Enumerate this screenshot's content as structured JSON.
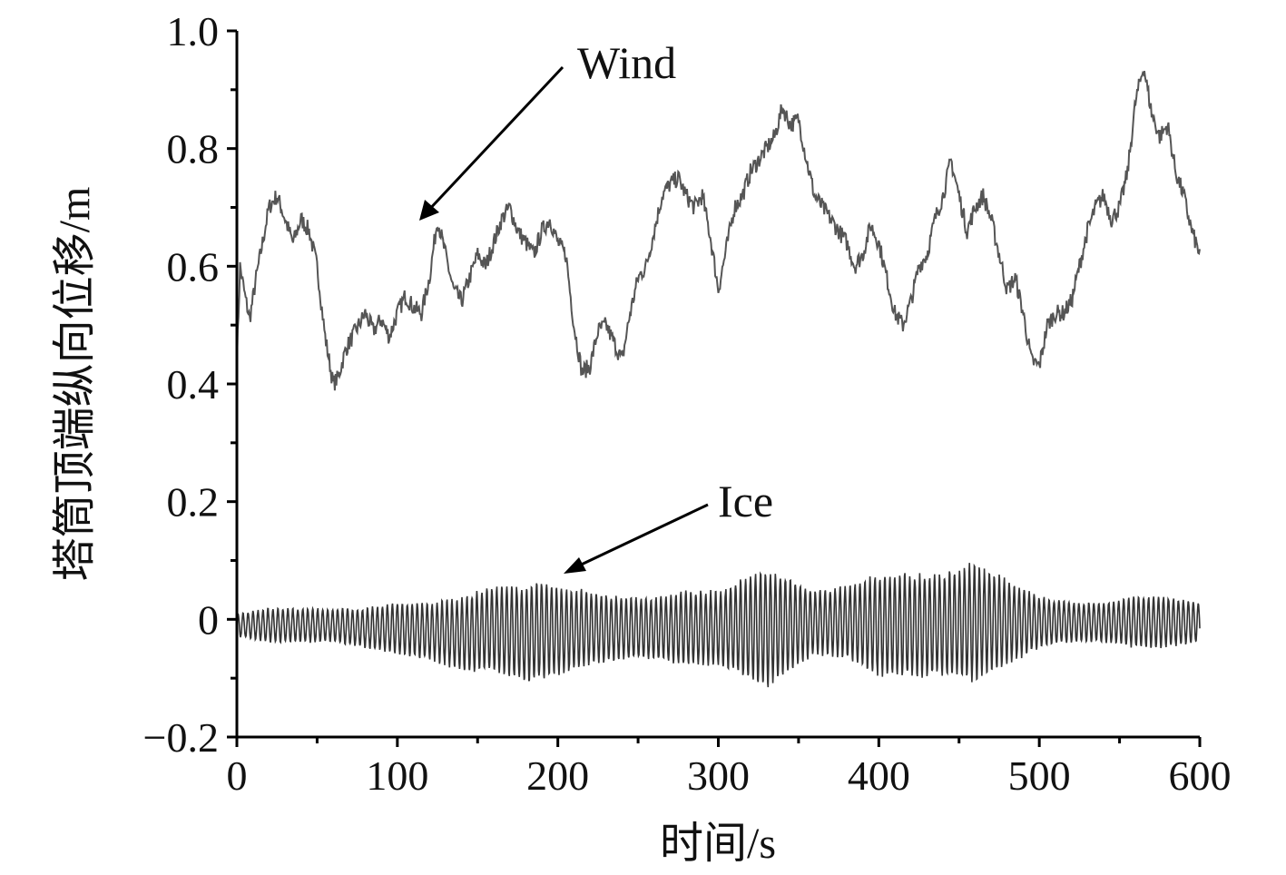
{
  "chart_data": {
    "type": "line",
    "xlabel": "时间/s",
    "ylabel": "塔筒顶端纵向位移/m",
    "xlim": [
      0,
      600
    ],
    "ylim": [
      -0.2,
      1.0
    ],
    "x_ticks": [
      0,
      100,
      200,
      300,
      400,
      500,
      600
    ],
    "x_tick_labels": [
      "0",
      "100",
      "200",
      "300",
      "400",
      "500",
      "600"
    ],
    "y_ticks": [
      -0.2,
      0,
      0.2,
      0.4,
      0.6,
      0.8,
      1.0
    ],
    "y_tick_labels": [
      "−0.2",
      "0",
      "0.2",
      "0.4",
      "0.6",
      "0.8",
      "1.0"
    ],
    "grid": false,
    "series": [
      {
        "name": "Wind",
        "color": "#555555",
        "points": [
          [
            0,
            0.44
          ],
          [
            2,
            0.6
          ],
          [
            5,
            0.55
          ],
          [
            8,
            0.51
          ],
          [
            12,
            0.58
          ],
          [
            16,
            0.64
          ],
          [
            20,
            0.7
          ],
          [
            25,
            0.72
          ],
          [
            30,
            0.68
          ],
          [
            35,
            0.64
          ],
          [
            40,
            0.68
          ],
          [
            45,
            0.66
          ],
          [
            50,
            0.6
          ],
          [
            55,
            0.48
          ],
          [
            60,
            0.4
          ],
          [
            63,
            0.41
          ],
          [
            68,
            0.46
          ],
          [
            72,
            0.48
          ],
          [
            76,
            0.5
          ],
          [
            80,
            0.52
          ],
          [
            85,
            0.49
          ],
          [
            90,
            0.51
          ],
          [
            95,
            0.48
          ],
          [
            100,
            0.52
          ],
          [
            105,
            0.55
          ],
          [
            110,
            0.53
          ],
          [
            115,
            0.52
          ],
          [
            120,
            0.58
          ],
          [
            125,
            0.68
          ],
          [
            130,
            0.62
          ],
          [
            135,
            0.56
          ],
          [
            140,
            0.54
          ],
          [
            145,
            0.58
          ],
          [
            150,
            0.62
          ],
          [
            155,
            0.6
          ],
          [
            160,
            0.64
          ],
          [
            165,
            0.68
          ],
          [
            170,
            0.7
          ],
          [
            175,
            0.66
          ],
          [
            180,
            0.64
          ],
          [
            185,
            0.62
          ],
          [
            190,
            0.66
          ],
          [
            195,
            0.68
          ],
          [
            200,
            0.64
          ],
          [
            205,
            0.62
          ],
          [
            210,
            0.5
          ],
          [
            215,
            0.42
          ],
          [
            220,
            0.43
          ],
          [
            225,
            0.49
          ],
          [
            230,
            0.5
          ],
          [
            235,
            0.47
          ],
          [
            240,
            0.44
          ],
          [
            245,
            0.52
          ],
          [
            250,
            0.58
          ],
          [
            255,
            0.6
          ],
          [
            260,
            0.66
          ],
          [
            265,
            0.72
          ],
          [
            270,
            0.74
          ],
          [
            275,
            0.75
          ],
          [
            280,
            0.72
          ],
          [
            285,
            0.7
          ],
          [
            290,
            0.72
          ],
          [
            295,
            0.65
          ],
          [
            300,
            0.56
          ],
          [
            305,
            0.63
          ],
          [
            310,
            0.7
          ],
          [
            315,
            0.72
          ],
          [
            320,
            0.76
          ],
          [
            325,
            0.78
          ],
          [
            330,
            0.8
          ],
          [
            335,
            0.82
          ],
          [
            340,
            0.87
          ],
          [
            345,
            0.84
          ],
          [
            350,
            0.85
          ],
          [
            355,
            0.78
          ],
          [
            360,
            0.72
          ],
          [
            365,
            0.7
          ],
          [
            370,
            0.68
          ],
          [
            375,
            0.66
          ],
          [
            380,
            0.64
          ],
          [
            385,
            0.6
          ],
          [
            390,
            0.62
          ],
          [
            395,
            0.67
          ],
          [
            400,
            0.64
          ],
          [
            405,
            0.58
          ],
          [
            410,
            0.52
          ],
          [
            415,
            0.5
          ],
          [
            420,
            0.54
          ],
          [
            425,
            0.6
          ],
          [
            430,
            0.62
          ],
          [
            435,
            0.68
          ],
          [
            440,
            0.72
          ],
          [
            445,
            0.78
          ],
          [
            450,
            0.72
          ],
          [
            455,
            0.66
          ],
          [
            460,
            0.7
          ],
          [
            465,
            0.72
          ],
          [
            470,
            0.68
          ],
          [
            475,
            0.62
          ],
          [
            480,
            0.56
          ],
          [
            485,
            0.58
          ],
          [
            490,
            0.52
          ],
          [
            495,
            0.44
          ],
          [
            500,
            0.43
          ],
          [
            505,
            0.5
          ],
          [
            510,
            0.52
          ],
          [
            515,
            0.52
          ],
          [
            520,
            0.54
          ],
          [
            525,
            0.6
          ],
          [
            530,
            0.66
          ],
          [
            535,
            0.7
          ],
          [
            540,
            0.72
          ],
          [
            545,
            0.68
          ],
          [
            550,
            0.7
          ],
          [
            555,
            0.76
          ],
          [
            560,
            0.88
          ],
          [
            565,
            0.94
          ],
          [
            570,
            0.86
          ],
          [
            575,
            0.82
          ],
          [
            580,
            0.84
          ],
          [
            585,
            0.76
          ],
          [
            590,
            0.72
          ],
          [
            595,
            0.66
          ],
          [
            600,
            0.62
          ]
        ]
      },
      {
        "name": "Ice",
        "color": "#333333",
        "period_s": 3.1,
        "envelope_upper": [
          [
            0,
            0.01
          ],
          [
            20,
            0.02
          ],
          [
            40,
            0.02
          ],
          [
            60,
            0.02
          ],
          [
            80,
            0.02
          ],
          [
            100,
            0.03
          ],
          [
            120,
            0.03
          ],
          [
            140,
            0.04
          ],
          [
            160,
            0.06
          ],
          [
            180,
            0.06
          ],
          [
            190,
            0.07
          ],
          [
            200,
            0.06
          ],
          [
            220,
            0.05
          ],
          [
            240,
            0.04
          ],
          [
            260,
            0.04
          ],
          [
            280,
            0.05
          ],
          [
            300,
            0.05
          ],
          [
            320,
            0.08
          ],
          [
            330,
            0.09
          ],
          [
            340,
            0.08
          ],
          [
            360,
            0.05
          ],
          [
            380,
            0.06
          ],
          [
            400,
            0.08
          ],
          [
            420,
            0.08
          ],
          [
            440,
            0.08
          ],
          [
            460,
            0.1
          ],
          [
            480,
            0.07
          ],
          [
            500,
            0.04
          ],
          [
            520,
            0.03
          ],
          [
            540,
            0.03
          ],
          [
            560,
            0.04
          ],
          [
            580,
            0.04
          ],
          [
            600,
            0.03
          ]
        ],
        "envelope_lower": [
          [
            0,
            -0.03
          ],
          [
            20,
            -0.04
          ],
          [
            40,
            -0.04
          ],
          [
            60,
            -0.04
          ],
          [
            80,
            -0.05
          ],
          [
            100,
            -0.06
          ],
          [
            120,
            -0.07
          ],
          [
            140,
            -0.09
          ],
          [
            160,
            -0.09
          ],
          [
            180,
            -0.11
          ],
          [
            200,
            -0.1
          ],
          [
            220,
            -0.08
          ],
          [
            240,
            -0.07
          ],
          [
            260,
            -0.07
          ],
          [
            280,
            -0.08
          ],
          [
            300,
            -0.08
          ],
          [
            320,
            -0.11
          ],
          [
            330,
            -0.12
          ],
          [
            340,
            -0.1
          ],
          [
            360,
            -0.06
          ],
          [
            380,
            -0.07
          ],
          [
            400,
            -0.1
          ],
          [
            420,
            -0.1
          ],
          [
            440,
            -0.1
          ],
          [
            460,
            -0.11
          ],
          [
            480,
            -0.08
          ],
          [
            500,
            -0.05
          ],
          [
            520,
            -0.04
          ],
          [
            540,
            -0.04
          ],
          [
            560,
            -0.05
          ],
          [
            580,
            -0.05
          ],
          [
            600,
            -0.04
          ]
        ]
      }
    ],
    "annotations": [
      {
        "text": "Wind",
        "target": [
          116,
          0.68
        ]
      },
      {
        "text": "Ice",
        "target": [
          203,
          0.08
        ]
      }
    ]
  }
}
